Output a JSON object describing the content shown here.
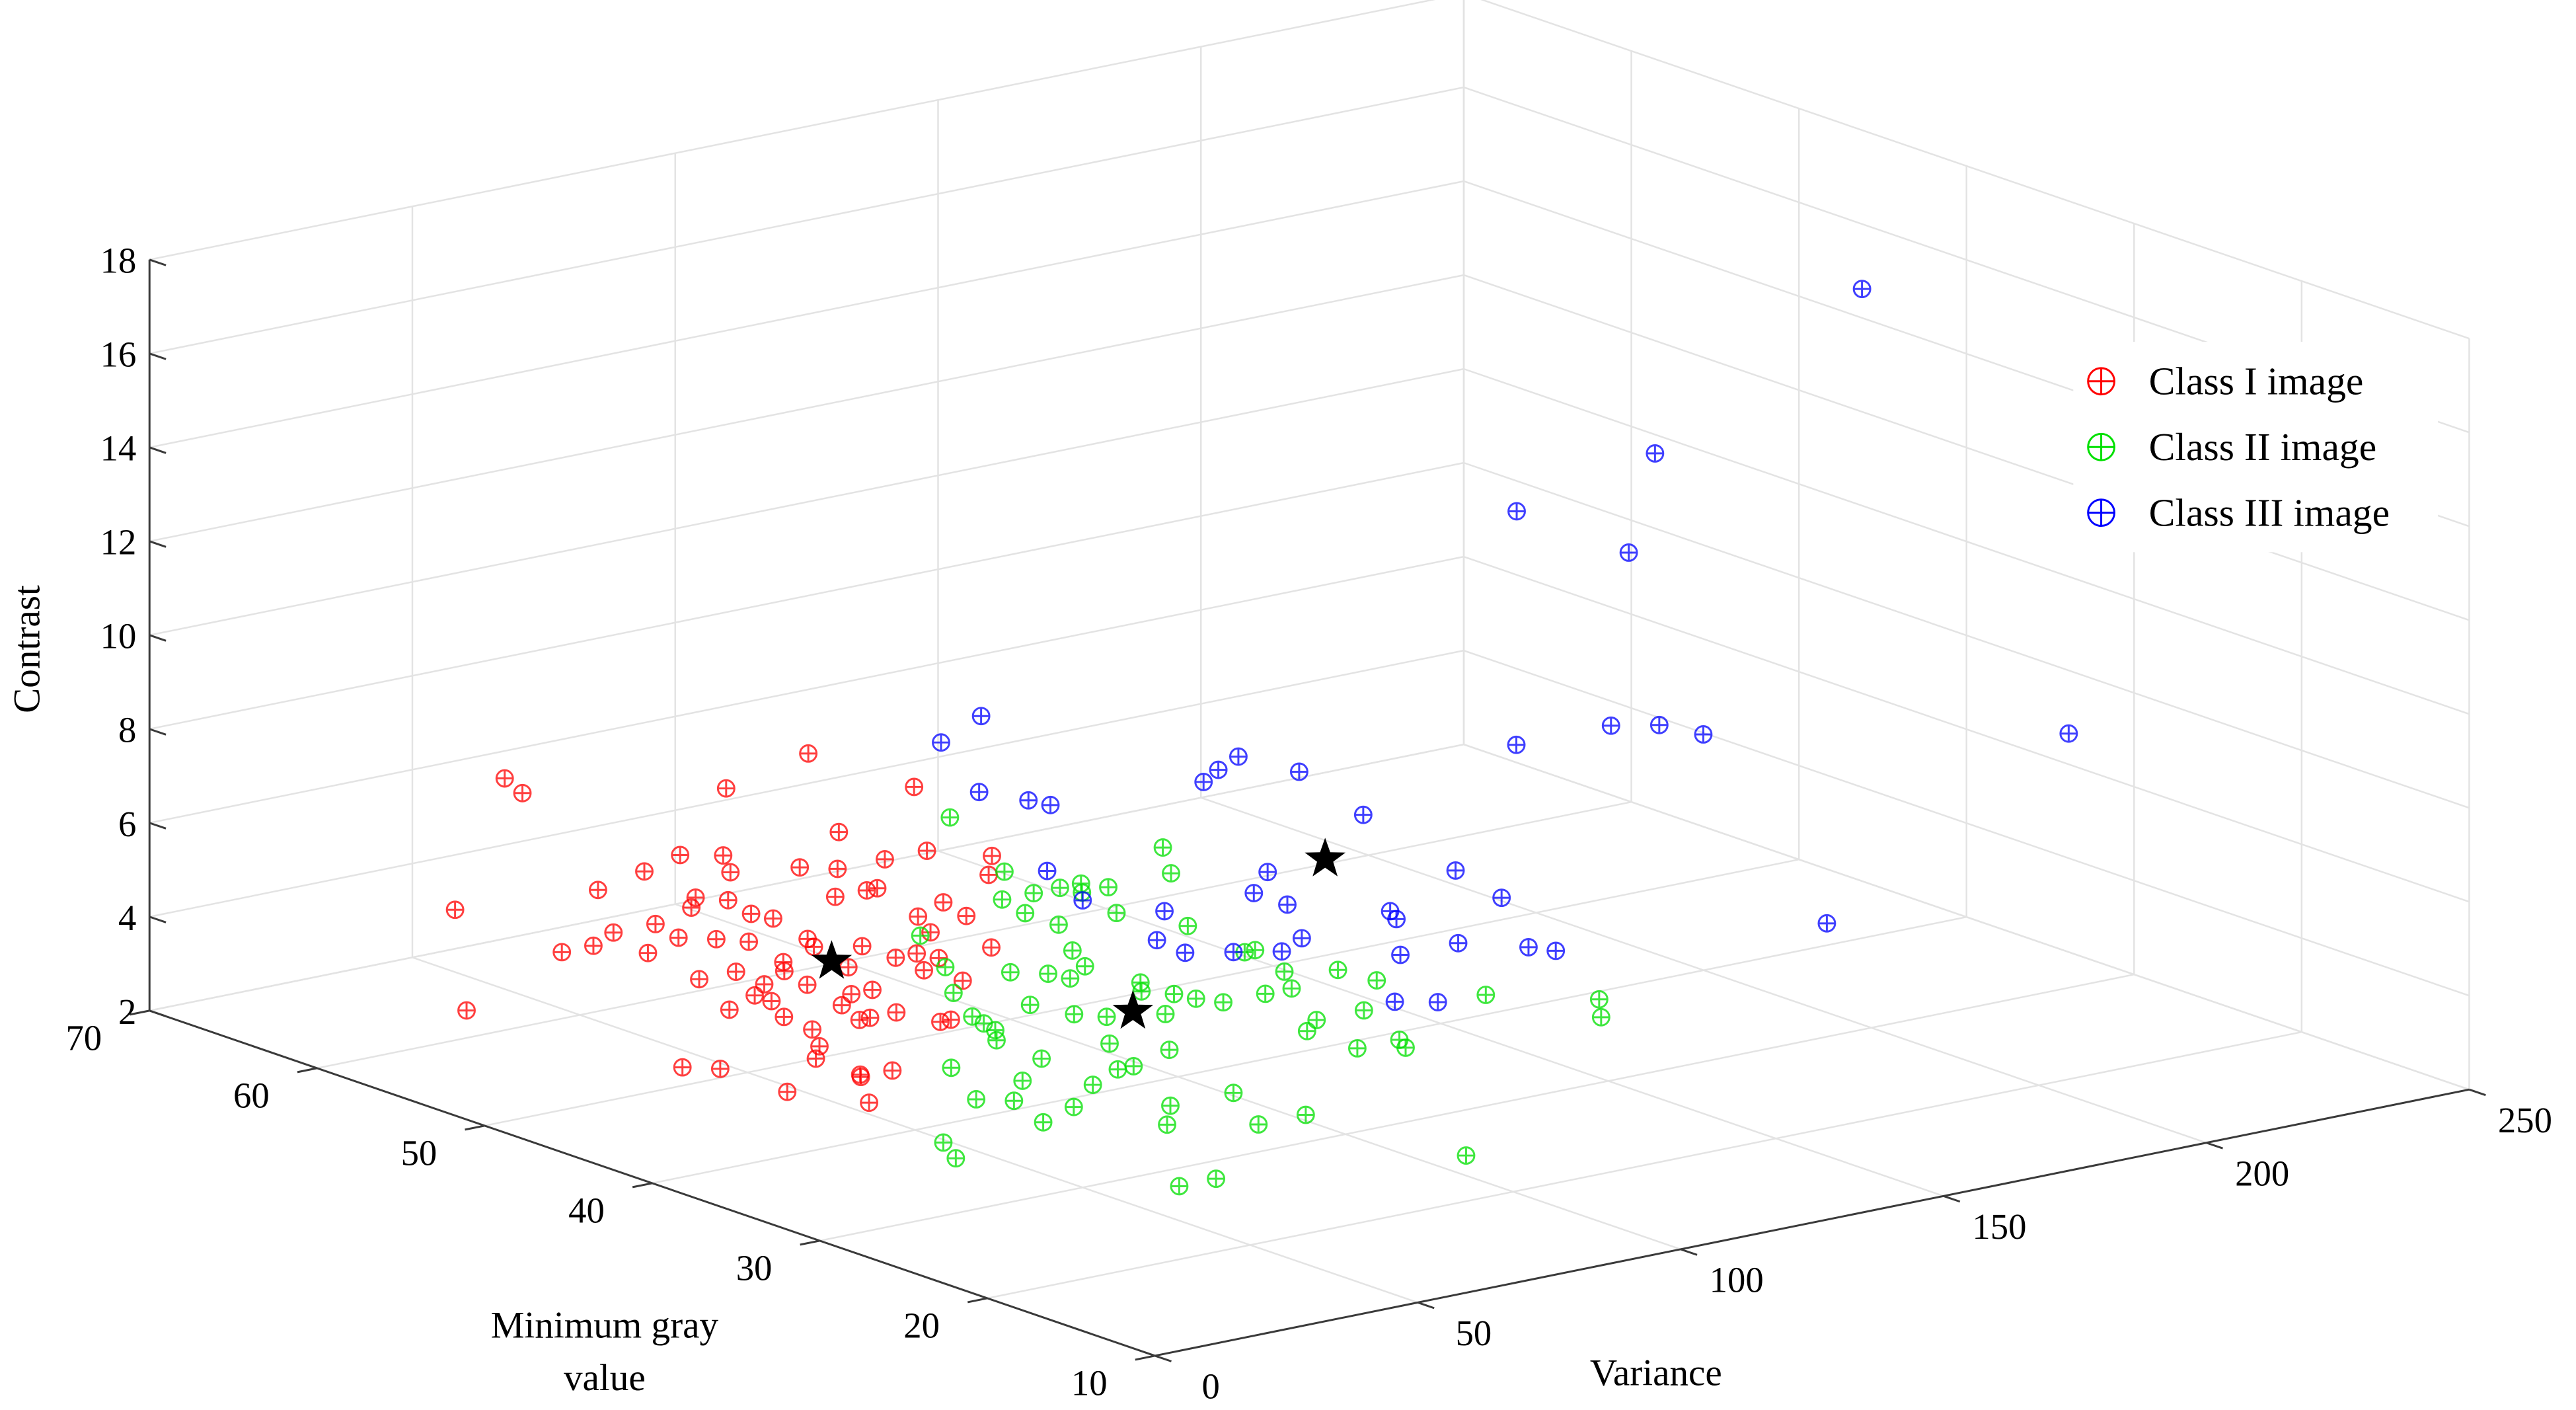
{
  "chart_data": {
    "type": "scatter3d",
    "title": "",
    "axes": {
      "x": {
        "label": "Variance",
        "range": [
          0,
          250
        ],
        "ticks": [
          0,
          50,
          100,
          150,
          200,
          250
        ]
      },
      "y": {
        "label_lines": [
          "Minimum gray",
          "value"
        ],
        "range": [
          10,
          70
        ],
        "ticks": [
          10,
          20,
          30,
          40,
          50,
          60,
          70
        ]
      },
      "z": {
        "label": "Contrast",
        "range": [
          2,
          18
        ],
        "ticks": [
          2,
          4,
          6,
          8,
          10,
          12,
          14,
          16,
          18
        ]
      }
    },
    "grid": true,
    "legend_position": "top-right",
    "marker": "circle-plus",
    "series": [
      {
        "name": "Class I image",
        "color": "#ff0000",
        "points": [
          [
            39,
            64,
            4
          ],
          [
            38,
            63,
            2
          ],
          [
            58,
            67,
            6
          ],
          [
            55,
            65,
            6
          ],
          [
            37,
            57,
            4
          ],
          [
            43,
            57,
            4
          ],
          [
            63,
            63,
            4
          ],
          [
            50,
            58,
            4
          ],
          [
            75,
            64,
            4
          ],
          [
            47,
            55,
            4
          ],
          [
            58,
            58,
            4
          ],
          [
            85,
            65,
            4
          ],
          [
            56,
            56,
            4
          ],
          [
            68,
            59,
            4
          ],
          [
            72,
            60,
            4
          ],
          [
            44,
            51,
            4
          ],
          [
            60,
            55,
            4
          ],
          [
            37,
            47,
            4
          ],
          [
            75,
            59,
            4
          ],
          [
            90,
            64,
            4
          ],
          [
            85,
            62,
            4
          ],
          [
            51,
            51,
            4
          ],
          [
            63,
            54,
            4
          ],
          [
            45,
            48,
            4
          ],
          [
            73,
            57,
            4
          ],
          [
            50,
            49,
            4
          ],
          [
            74,
            56,
            4
          ],
          [
            45,
            47,
            4
          ],
          [
            60,
            51,
            4
          ],
          [
            57,
            50,
            4
          ],
          [
            41,
            45,
            4
          ],
          [
            95,
            61,
            4
          ],
          [
            103,
            63,
            6
          ],
          [
            55,
            48,
            4
          ],
          [
            71,
            53,
            4
          ],
          [
            40,
            43,
            4
          ],
          [
            69,
            52,
            4
          ],
          [
            35,
            41,
            4
          ],
          [
            52,
            45,
            4
          ],
          [
            89,
            57,
            4
          ],
          [
            99,
            60,
            4
          ],
          [
            57,
            46,
            4
          ],
          [
            49,
            43,
            4
          ],
          [
            75,
            51,
            4
          ],
          [
            30,
            37,
            4
          ],
          [
            95,
            57,
            4
          ],
          [
            51,
            43,
            4
          ],
          [
            61,
            46,
            4
          ],
          [
            97,
            57,
            4
          ],
          [
            108,
            60,
            4
          ],
          [
            75,
            49,
            4
          ],
          [
            56,
            43,
            4
          ],
          [
            79,
            49,
            4
          ],
          [
            104,
            57,
            6
          ],
          [
            92,
            53,
            4
          ],
          [
            74,
            47,
            4
          ],
          [
            116,
            60,
            4
          ],
          [
            88,
            51,
            4
          ],
          [
            100,
            54,
            4
          ],
          [
            80,
            48,
            4
          ],
          [
            60,
            41,
            4
          ],
          [
            75,
            45,
            4
          ],
          [
            98,
            52,
            4
          ],
          [
            90,
            48,
            4
          ],
          [
            115,
            56,
            4
          ],
          [
            122,
            58,
            4
          ],
          [
            81,
            61,
            6
          ],
          [
            44,
            52,
            2
          ],
          [
            48,
            51,
            2
          ],
          [
            48,
            47,
            2
          ],
          [
            54,
            44,
            2
          ],
          [
            68,
            47,
            2
          ],
          [
            62,
            47,
            2
          ],
          [
            112,
            64,
            4
          ],
          [
            63,
            50,
            2
          ],
          [
            58,
            41,
            4
          ],
          [
            66,
            49,
            4
          ]
        ]
      },
      {
        "name": "Class II image",
        "color": "#00e000",
        "points": [
          [
            114,
            58,
            5
          ],
          [
            118,
            56,
            4
          ],
          [
            108,
            53,
            4
          ],
          [
            106,
            51,
            4
          ],
          [
            114,
            53,
            4
          ],
          [
            106,
            49,
            4
          ],
          [
            119,
            53,
            4
          ],
          [
            120,
            52,
            4
          ],
          [
            123,
            53,
            4
          ],
          [
            125,
            52,
            4
          ],
          [
            117,
            49,
            4
          ],
          [
            129,
            50,
            5
          ],
          [
            121,
            47,
            5
          ],
          [
            102,
            56,
            3
          ],
          [
            94,
            52,
            3
          ],
          [
            86,
            49,
            3
          ],
          [
            80,
            46,
            3
          ],
          [
            79,
            45,
            3
          ],
          [
            78,
            44,
            3
          ],
          [
            100,
            50,
            3
          ],
          [
            91,
            46,
            3
          ],
          [
            104,
            49,
            3
          ],
          [
            105,
            48,
            3
          ],
          [
            115,
            51,
            3
          ],
          [
            111,
            49,
            3
          ],
          [
            96,
            43,
            3
          ],
          [
            87,
            40,
            3
          ],
          [
            79,
            37,
            3
          ],
          [
            82,
            37,
            3
          ],
          [
            112,
            46,
            3
          ],
          [
            109,
            45,
            3
          ],
          [
            104,
            42,
            3
          ],
          [
            112,
            44,
            3
          ],
          [
            113,
            43,
            3
          ],
          [
            92,
            38,
            3
          ],
          [
            121,
            46,
            4
          ],
          [
            115,
            42,
            3
          ],
          [
            135,
            47,
            3
          ],
          [
            137,
            47,
            3
          ],
          [
            123,
            42,
            3
          ],
          [
            133,
            44,
            3
          ],
          [
            128,
            42,
            3
          ],
          [
            115,
            37,
            3
          ],
          [
            120,
            38,
            3
          ],
          [
            140,
            43,
            3
          ],
          [
            115,
            34,
            3
          ],
          [
            129,
            38,
            3
          ],
          [
            141,
            41,
            3
          ],
          [
            123,
            34,
            3
          ],
          [
            121,
            33,
            3
          ],
          [
            149,
            37,
            3
          ],
          [
            161,
            34,
            3
          ],
          [
            155,
            32,
            3
          ],
          [
            76,
            46,
            2
          ],
          [
            49,
            38,
            2
          ],
          [
            45,
            36,
            2
          ],
          [
            68,
            42,
            2
          ],
          [
            72,
            41,
            2
          ],
          [
            80,
            43,
            2
          ],
          [
            90,
            45,
            2
          ],
          [
            68,
            38,
            2
          ],
          [
            77,
            39,
            2
          ],
          [
            87,
            41,
            2
          ],
          [
            89,
            37,
            2
          ],
          [
            82,
            35,
            2
          ],
          [
            62,
            28,
            2
          ],
          [
            69,
            28,
            2
          ],
          [
            101,
            37,
            2
          ],
          [
            93,
            33,
            2
          ],
          [
            102,
            33,
            2
          ],
          [
            107,
            25,
            2
          ],
          [
            93,
            44,
            3
          ],
          [
            91,
            48,
            2
          ]
        ]
      },
      {
        "name": "Class III image",
        "color": "#0000ff",
        "points": [
          [
            90,
            51,
            8
          ],
          [
            104,
            53,
            8
          ],
          [
            110,
            55,
            6
          ],
          [
            113,
            53,
            6
          ],
          [
            114,
            52,
            6
          ],
          [
            107,
            50,
            5
          ],
          [
            101,
            46,
            5
          ],
          [
            96,
            40,
            5
          ],
          [
            107,
            43,
            5
          ],
          [
            124,
            46,
            7
          ],
          [
            130,
            47,
            7
          ],
          [
            137,
            48,
            7
          ],
          [
            139,
            45,
            7
          ],
          [
            95,
            38,
            5
          ],
          [
            101,
            37,
            5
          ],
          [
            124,
            43,
            5
          ],
          [
            133,
            45,
            5
          ],
          [
            107,
            36,
            5
          ],
          [
            124,
            41,
            5
          ],
          [
            114,
            37,
            5
          ],
          [
            148,
            44,
            6
          ],
          [
            134,
            38,
            5
          ],
          [
            132,
            37,
            5
          ],
          [
            120,
            33,
            5
          ],
          [
            103,
            28,
            5
          ],
          [
            108,
            27,
            5
          ],
          [
            131,
            33,
            5
          ],
          [
            156,
            41,
            5
          ],
          [
            152,
            37,
            5
          ],
          [
            138,
            31,
            5
          ],
          [
            140,
            30,
            5
          ],
          [
            182,
            27,
            5
          ],
          [
            158,
            38,
            8
          ],
          [
            176,
            38,
            8
          ],
          [
            182,
            37,
            8
          ],
          [
            184,
            35,
            8
          ],
          [
            228,
            27,
            8
          ],
          [
            174,
            43,
            12
          ],
          [
            173,
            36,
            12
          ],
          [
            178,
            36,
            14
          ],
          [
            211,
            34,
            17
          ]
        ]
      }
    ],
    "centroids": {
      "marker": "star",
      "color": "#000000",
      "points": [
        [
          66,
          50,
          4
        ],
        [
          101,
          43,
          3
        ],
        [
          128,
          40,
          6
        ]
      ]
    }
  }
}
